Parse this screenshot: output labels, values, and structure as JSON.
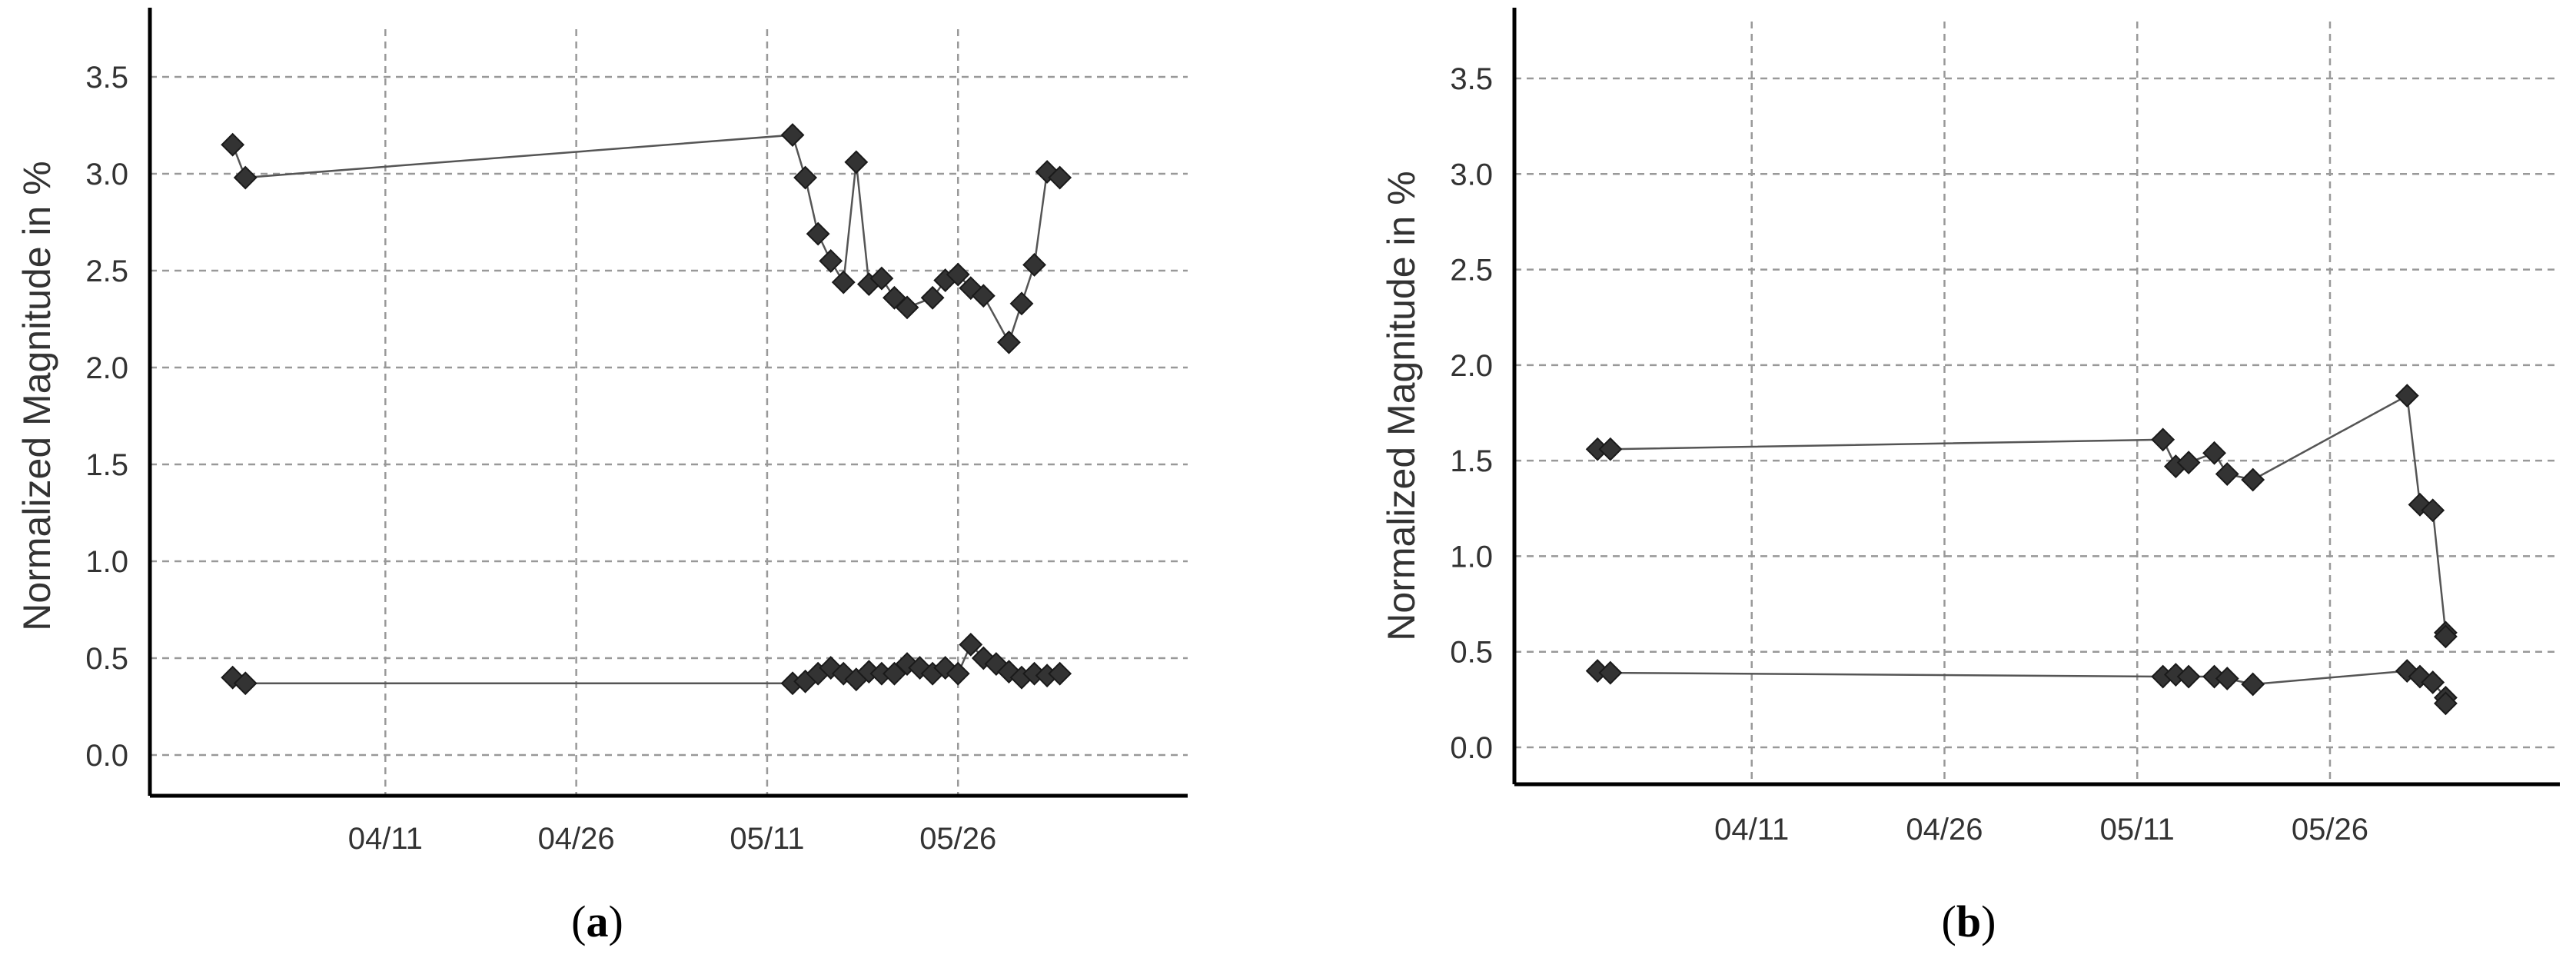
{
  "chart_data": [
    {
      "type": "line",
      "panel": "(a)",
      "ylabel": "Normalized Magnitude in %",
      "xlabel": "",
      "ylim": [
        -0.2,
        3.75
      ],
      "yticks": [
        0.0,
        0.5,
        1.0,
        1.5,
        2.0,
        2.5,
        3.0,
        3.5
      ],
      "ytick_labels": [
        "0.0",
        "0.5",
        "1.0",
        "1.5",
        "2.0",
        "2.5",
        "3.0",
        "3.5"
      ],
      "xlim": [
        "03/27",
        "06/09"
      ],
      "xticks": [
        "04/11",
        "04/26",
        "05/11",
        "05/26"
      ],
      "grid": true,
      "series": [
        {
          "x": [
            "03/30",
            "03/31",
            "05/13",
            "05/14",
            "05/15",
            "05/16",
            "05/17",
            "05/18",
            "05/19",
            "05/20",
            "05/21",
            "05/22",
            "05/24",
            "05/25",
            "05/26",
            "05/27",
            "05/28",
            "05/30",
            "05/31",
            "06/01",
            "06/02",
            "06/03"
          ],
          "y": [
            3.15,
            2.98,
            3.2,
            2.98,
            2.69,
            2.55,
            2.44,
            3.06,
            2.43,
            2.46,
            2.36,
            2.31,
            2.36,
            2.45,
            2.48,
            2.41,
            2.37,
            2.13,
            2.33,
            2.53,
            3.01,
            2.98
          ]
        },
        {
          "x": [
            "03/30",
            "03/31",
            "05/13",
            "05/14",
            "05/15",
            "05/16",
            "05/17",
            "05/18",
            "05/19",
            "05/20",
            "05/21",
            "05/22",
            "05/23",
            "05/24",
            "05/25",
            "05/26",
            "05/27",
            "05/28",
            "05/29",
            "05/30",
            "05/31",
            "06/01",
            "06/02",
            "06/03"
          ],
          "y": [
            0.4,
            0.37,
            0.37,
            0.38,
            0.42,
            0.45,
            0.42,
            0.39,
            0.43,
            0.42,
            0.42,
            0.47,
            0.45,
            0.42,
            0.45,
            0.42,
            0.57,
            0.5,
            0.47,
            0.43,
            0.4,
            0.42,
            0.41,
            0.42
          ]
        }
      ]
    },
    {
      "type": "line",
      "panel": "(b)",
      "ylabel": "Normalized Magnitude in %",
      "xlabel": "",
      "ylim": [
        -0.2,
        3.75
      ],
      "yticks": [
        0.0,
        0.5,
        1.0,
        1.5,
        2.0,
        2.5,
        3.0,
        3.5
      ],
      "ytick_labels": [
        "0.0",
        "0.5",
        "1.0",
        "1.5",
        "2.0",
        "2.5",
        "3.0",
        "3.5"
      ],
      "xlim": [
        "03/27",
        "06/09"
      ],
      "xticks": [
        "04/11",
        "04/26",
        "05/11",
        "05/26"
      ],
      "grid": true,
      "series": [
        {
          "x": [
            "03/30",
            "03/31",
            "05/13",
            "05/14",
            "05/15",
            "05/17",
            "05/18",
            "05/20",
            "06/01",
            "06/02",
            "06/03",
            "06/04",
            "06/04"
          ],
          "y": [
            1.56,
            1.56,
            1.61,
            1.47,
            1.49,
            1.54,
            1.43,
            1.4,
            1.84,
            1.27,
            1.24,
            0.6,
            0.58
          ]
        },
        {
          "x": [
            "03/30",
            "03/31",
            "05/13",
            "05/14",
            "05/15",
            "05/17",
            "05/18",
            "05/20",
            "06/01",
            "06/02",
            "06/03",
            "06/04",
            "06/04"
          ],
          "y": [
            0.4,
            0.39,
            0.37,
            0.38,
            0.37,
            0.37,
            0.36,
            0.33,
            0.4,
            0.37,
            0.34,
            0.26,
            0.23
          ]
        }
      ]
    }
  ],
  "captions": {
    "a": {
      "open": "(",
      "letter": "a",
      "close": ")"
    },
    "b": {
      "open": "(",
      "letter": "b",
      "close": ")"
    }
  },
  "colors": {
    "marker": "#333333",
    "line": "#555555",
    "grid": "#999999",
    "axis": "#000000",
    "text": "#333333"
  }
}
